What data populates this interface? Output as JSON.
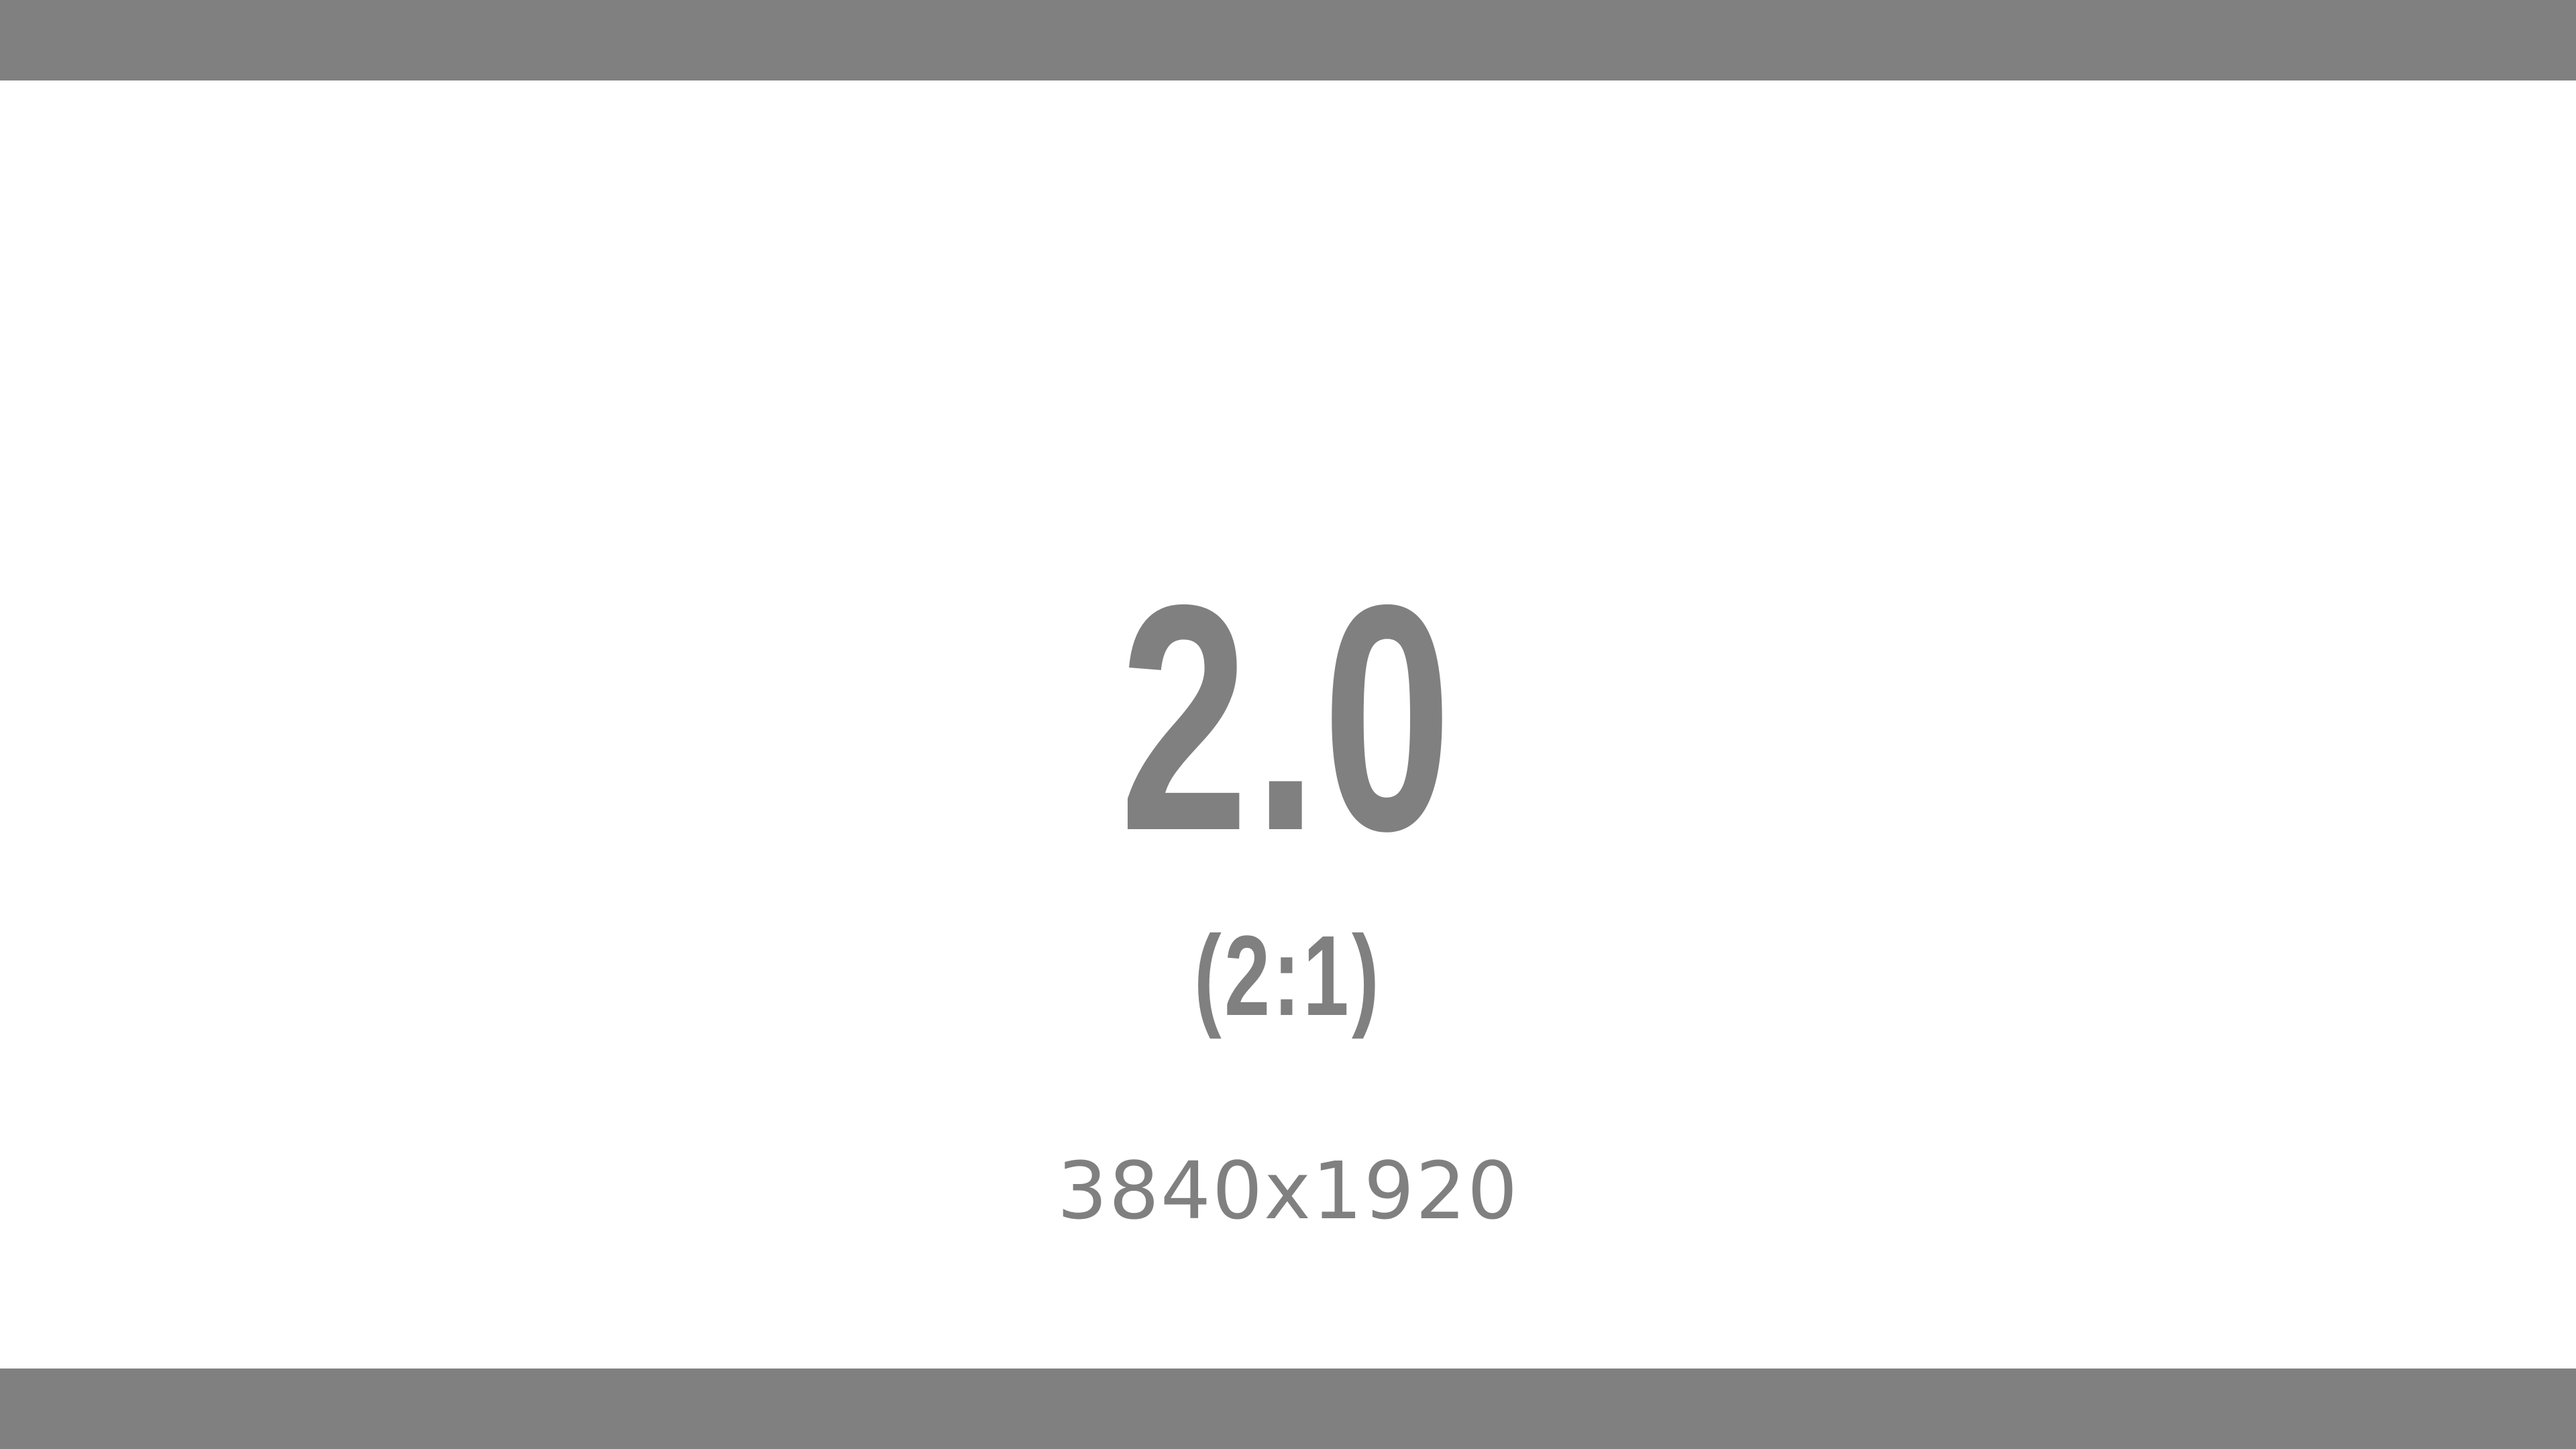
{
  "colors": {
    "bar": "#808080",
    "background": "#ffffff",
    "text": "#808080"
  },
  "screen": {
    "ratio_value": "2.0",
    "ratio_label": "(2:1)",
    "resolution": "3840x1920"
  }
}
